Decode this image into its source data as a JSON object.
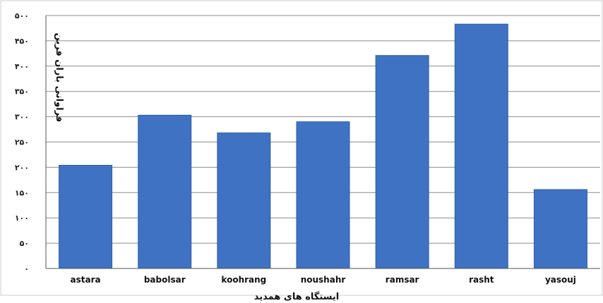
{
  "chart_data": {
    "type": "bar",
    "title": "",
    "xlabel": "ایستگاه های همدید",
    "ylabel": "فراوانی باران فرین",
    "categories": [
      "astara",
      "babolsar",
      "koohrang",
      "noushahr",
      "ramsar",
      "rasht",
      "yasouj"
    ],
    "values": [
      204,
      303,
      268,
      290,
      421,
      483,
      156
    ],
    "ylim": [
      0,
      500
    ],
    "yticks": [
      0,
      50,
      100,
      150,
      200,
      250,
      300,
      350,
      400,
      450,
      500
    ],
    "ytick_labels": [
      "۰",
      "۵۰",
      "۱۰۰",
      "۱۵۰",
      "۲۰۰",
      "۲۵۰",
      "۳۰۰",
      "۳۵۰",
      "۴۰۰",
      "۴۵۰",
      "۵۰۰"
    ],
    "grid": true,
    "legend": "none",
    "bar_color": "#3f72c2"
  }
}
